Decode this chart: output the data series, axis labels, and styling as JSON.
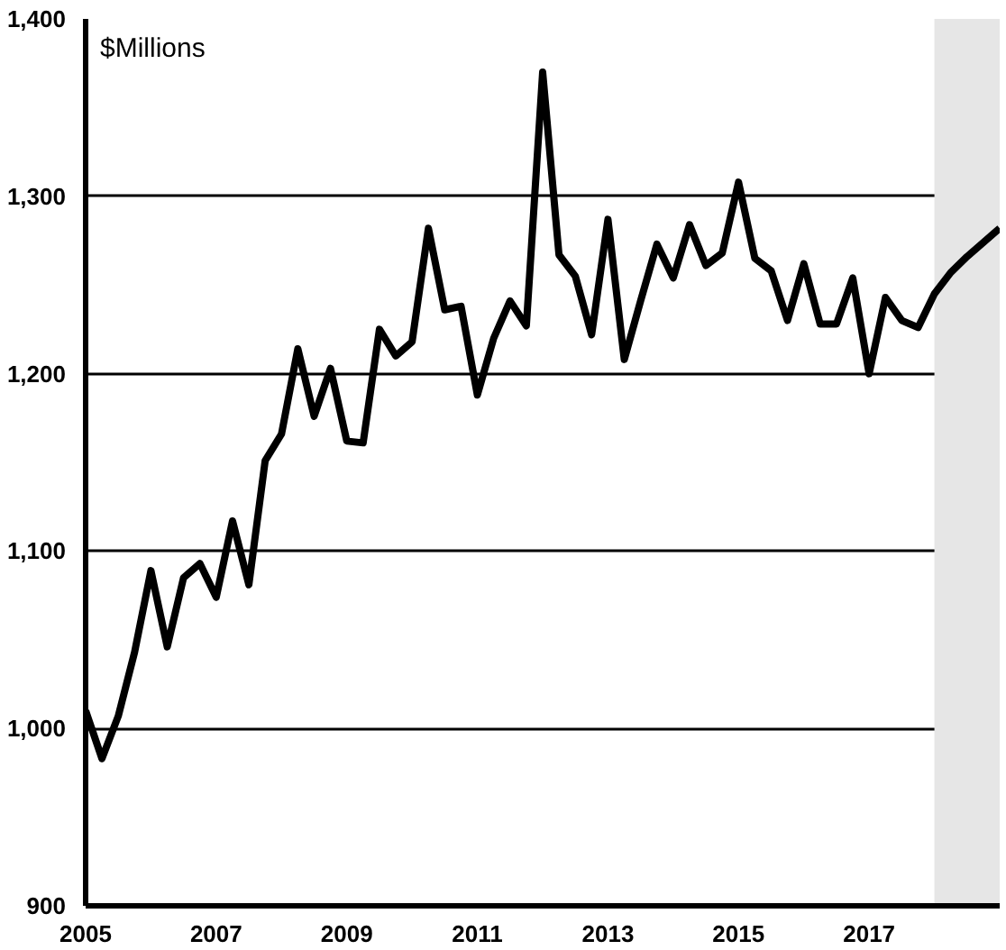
{
  "chart_data": {
    "type": "line",
    "annotations": [
      "$Millions"
    ],
    "x": [
      2005,
      2005.25,
      2005.5,
      2005.75,
      2006,
      2006.25,
      2006.5,
      2006.75,
      2007,
      2007.25,
      2007.5,
      2007.75,
      2008,
      2008.25,
      2008.5,
      2008.75,
      2009,
      2009.25,
      2009.5,
      2009.75,
      2010,
      2010.25,
      2010.5,
      2010.75,
      2011,
      2011.25,
      2011.5,
      2011.75,
      2012,
      2012.25,
      2012.5,
      2012.75,
      2013,
      2013.25,
      2013.5,
      2013.75,
      2014,
      2014.25,
      2014.5,
      2014.75,
      2015,
      2015.25,
      2015.5,
      2015.75,
      2016,
      2016.25,
      2016.5,
      2016.75,
      2017,
      2017.25,
      2017.5,
      2017.75,
      2018,
      2018.25,
      2018.5,
      2018.75,
      2019
    ],
    "series": [
      {
        "color": "#000000",
        "values": [
          1010,
          983,
          1007,
          1043,
          1089,
          1046,
          1085,
          1093,
          1074,
          1117,
          1081,
          1151,
          1166,
          1214,
          1176,
          1203,
          1162,
          1161,
          1225,
          1210,
          1218,
          1282,
          1236,
          1238,
          1188,
          1220,
          1241,
          1227,
          1370,
          1267,
          1255,
          1222,
          1287,
          1208,
          1241,
          1273,
          1254,
          1284,
          1261,
          1268,
          1308,
          1265,
          1258,
          1230,
          1262,
          1228,
          1228,
          1254,
          1200,
          1243,
          1230,
          1226,
          1245,
          1257,
          1266,
          1274,
          1282
        ]
      }
    ],
    "xlim": [
      2005,
      2019
    ],
    "ylim": [
      900,
      1400
    ],
    "xticks": [
      2005,
      2007,
      2009,
      2011,
      2013,
      2015,
      2017
    ],
    "yticks": [
      {
        "value": 900,
        "label": "900"
      },
      {
        "value": 1000,
        "label": "1,000"
      },
      {
        "value": 1100,
        "label": "1,100"
      },
      {
        "value": 1200,
        "label": "1,200"
      },
      {
        "value": 1300,
        "label": "1,300"
      },
      {
        "value": 1400,
        "label": "1,400"
      }
    ],
    "bands": [
      {
        "axis": "x",
        "from": 2018,
        "to": 2019,
        "color": "#e6e6e6"
      }
    ],
    "grid": "y",
    "marker": "none",
    "line_style": "solid"
  }
}
